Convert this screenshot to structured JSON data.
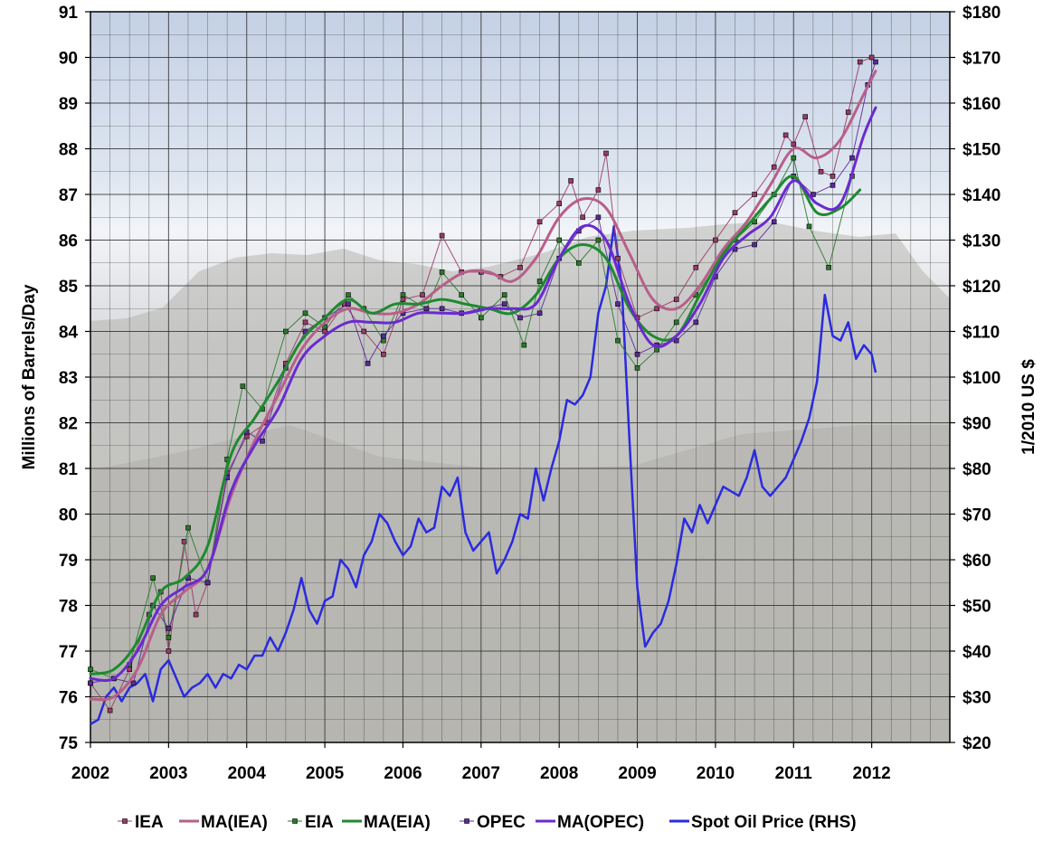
{
  "chart_data": {
    "type": "line",
    "title": "",
    "xlabel": "",
    "ylabel": "Millions of Barrels/Day",
    "y2label": "1/2010 US $",
    "xlim": [
      2002,
      2013
    ],
    "ylim": [
      75,
      91
    ],
    "y2lim": [
      20,
      180
    ],
    "x_ticks": [
      "2002",
      "2003",
      "2004",
      "2005",
      "2006",
      "2007",
      "2008",
      "2009",
      "2010",
      "2011",
      "2012"
    ],
    "y_ticks": [
      "75",
      "76",
      "77",
      "78",
      "79",
      "80",
      "81",
      "82",
      "83",
      "84",
      "85",
      "86",
      "87",
      "88",
      "89",
      "90",
      "91"
    ],
    "y2_ticks": [
      "$20",
      "$30",
      "$40",
      "$50",
      "$60",
      "$70",
      "$80",
      "$90",
      "$100",
      "$110",
      "$120",
      "$130",
      "$140",
      "$150",
      "$160",
      "$170",
      "$180"
    ],
    "legend": {
      "position": "bottom",
      "entries": [
        "IEA",
        "MA(IEA)",
        "EIA",
        "MA(EIA)",
        "OPEC",
        "MA(OPEC)",
        "Spot Oil Price (RHS)"
      ]
    },
    "colors": {
      "iea": "#9a3a6a",
      "ma_iea": "#b85f8a",
      "eia": "#2a7a2a",
      "ma_eia": "#1e8a30",
      "opec": "#5a2a9a",
      "ma_opec": "#6a2ad0",
      "spot": "#2a2ae0",
      "grid": "#333333"
    },
    "series": [
      {
        "name": "IEA",
        "key": "iea",
        "axis": "left",
        "style": "markers",
        "x": [
          2002.0,
          2002.25,
          2002.5,
          2002.75,
          2002.9,
          2003.0,
          2003.2,
          2003.35,
          2003.5,
          2003.75,
          2004.0,
          2004.25,
          2004.5,
          2004.75,
          2005.0,
          2005.25,
          2005.5,
          2005.75,
          2006.0,
          2006.25,
          2006.5,
          2006.75,
          2007.0,
          2007.25,
          2007.5,
          2007.75,
          2008.0,
          2008.15,
          2008.3,
          2008.5,
          2008.6,
          2008.75,
          2009.0,
          2009.25,
          2009.5,
          2009.75,
          2010.0,
          2010.25,
          2010.5,
          2010.75,
          2010.9,
          2011.0,
          2011.15,
          2011.35,
          2011.5,
          2011.7,
          2011.85,
          2012.0
        ],
        "values": [
          76.3,
          75.7,
          76.6,
          77.8,
          78.3,
          77.0,
          79.4,
          77.8,
          78.5,
          80.9,
          81.7,
          82.0,
          83.3,
          84.2,
          84.0,
          84.6,
          84.0,
          83.5,
          84.7,
          84.8,
          86.1,
          85.3,
          85.3,
          85.2,
          85.4,
          86.4,
          86.8,
          87.3,
          86.5,
          87.1,
          87.9,
          85.6,
          84.3,
          84.5,
          84.7,
          85.4,
          86.0,
          86.6,
          87.0,
          87.6,
          88.3,
          88.1,
          88.7,
          87.5,
          87.4,
          88.8,
          89.9,
          90.0
        ]
      },
      {
        "name": "MA(IEA)",
        "key": "ma_iea",
        "axis": "left",
        "style": "line",
        "x": [
          2002.0,
          2002.3,
          2002.6,
          2002.9,
          2003.2,
          2003.5,
          2003.8,
          2004.1,
          2004.4,
          2004.7,
          2005.0,
          2005.3,
          2005.6,
          2005.9,
          2006.2,
          2006.5,
          2006.8,
          2007.1,
          2007.4,
          2007.7,
          2008.0,
          2008.3,
          2008.6,
          2008.9,
          2009.2,
          2009.5,
          2009.8,
          2010.1,
          2010.4,
          2010.7,
          2011.0,
          2011.3,
          2011.6,
          2011.9,
          2012.05
        ],
        "values": [
          75.95,
          76.0,
          76.6,
          77.8,
          78.3,
          78.8,
          80.4,
          81.6,
          82.6,
          83.6,
          84.2,
          84.5,
          84.4,
          84.4,
          84.6,
          85.0,
          85.3,
          85.3,
          85.1,
          85.6,
          86.5,
          86.9,
          86.7,
          85.7,
          84.7,
          84.5,
          85.0,
          85.8,
          86.4,
          87.2,
          88.0,
          87.8,
          88.2,
          89.2,
          89.7
        ]
      },
      {
        "name": "EIA",
        "key": "eia",
        "axis": "left",
        "style": "markers",
        "x": [
          2002.0,
          2002.3,
          2002.5,
          2002.8,
          2003.0,
          2003.25,
          2003.5,
          2003.75,
          2003.95,
          2004.2,
          2004.5,
          2004.75,
          2005.0,
          2005.3,
          2005.5,
          2005.75,
          2006.0,
          2006.3,
          2006.5,
          2006.75,
          2007.0,
          2007.3,
          2007.55,
          2007.75,
          2008.0,
          2008.25,
          2008.5,
          2008.75,
          2009.0,
          2009.25,
          2009.5,
          2009.75,
          2010.0,
          2010.25,
          2010.5,
          2010.75,
          2011.0,
          2011.2,
          2011.45,
          2011.75
        ],
        "values": [
          76.6,
          76.4,
          76.7,
          78.6,
          77.3,
          79.7,
          78.5,
          81.2,
          82.8,
          82.3,
          84.0,
          84.4,
          84.1,
          84.8,
          84.5,
          83.8,
          84.8,
          84.5,
          85.3,
          84.8,
          84.3,
          84.8,
          83.7,
          85.1,
          86.0,
          85.5,
          86.0,
          83.8,
          83.2,
          83.6,
          84.2,
          84.8,
          85.4,
          86.0,
          86.4,
          87.0,
          87.8,
          86.3,
          85.4,
          87.4
        ]
      },
      {
        "name": "MA(EIA)",
        "key": "ma_eia",
        "axis": "left",
        "style": "line",
        "x": [
          2002.0,
          2002.3,
          2002.6,
          2002.9,
          2003.2,
          2003.5,
          2003.8,
          2004.1,
          2004.4,
          2004.7,
          2005.0,
          2005.3,
          2005.6,
          2005.9,
          2006.2,
          2006.5,
          2006.8,
          2007.1,
          2007.4,
          2007.7,
          2008.0,
          2008.3,
          2008.6,
          2008.9,
          2009.2,
          2009.5,
          2009.8,
          2010.1,
          2010.4,
          2010.7,
          2011.0,
          2011.3,
          2011.6,
          2011.85
        ],
        "values": [
          76.5,
          76.6,
          77.2,
          78.3,
          78.6,
          79.3,
          81.3,
          82.1,
          82.9,
          83.8,
          84.3,
          84.7,
          84.4,
          84.6,
          84.6,
          84.7,
          84.6,
          84.5,
          84.4,
          84.8,
          85.6,
          85.9,
          85.6,
          84.5,
          83.9,
          83.9,
          84.8,
          85.7,
          86.3,
          86.9,
          87.4,
          86.6,
          86.7,
          87.1
        ]
      },
      {
        "name": "OPEC",
        "key": "opec",
        "axis": "left",
        "style": "markers",
        "x": [
          2002.0,
          2002.3,
          2002.55,
          2002.8,
          2003.0,
          2003.25,
          2003.5,
          2003.75,
          2004.0,
          2004.2,
          2004.5,
          2004.75,
          2005.0,
          2005.3,
          2005.55,
          2005.75,
          2006.0,
          2006.3,
          2006.5,
          2006.75,
          2007.0,
          2007.3,
          2007.5,
          2007.75,
          2008.0,
          2008.25,
          2008.5,
          2008.75,
          2009.0,
          2009.25,
          2009.5,
          2009.75,
          2010.0,
          2010.25,
          2010.5,
          2010.75,
          2011.0,
          2011.25,
          2011.5,
          2011.75,
          2011.95,
          2012.05
        ],
        "values": [
          76.3,
          76.4,
          76.3,
          78.0,
          77.5,
          78.6,
          78.5,
          80.8,
          81.8,
          81.6,
          83.2,
          84.0,
          84.3,
          84.6,
          83.3,
          83.9,
          84.4,
          84.5,
          84.5,
          84.4,
          84.5,
          84.6,
          84.3,
          84.4,
          85.6,
          86.2,
          86.5,
          84.6,
          83.5,
          83.7,
          83.8,
          84.2,
          85.2,
          85.8,
          85.9,
          86.4,
          87.4,
          87.0,
          87.2,
          87.8,
          89.4,
          89.9
        ]
      },
      {
        "name": "MA(OPEC)",
        "key": "ma_opec",
        "axis": "left",
        "style": "line",
        "x": [
          2002.0,
          2002.3,
          2002.6,
          2002.9,
          2003.2,
          2003.5,
          2003.8,
          2004.1,
          2004.4,
          2004.7,
          2005.0,
          2005.3,
          2005.6,
          2005.9,
          2006.2,
          2006.5,
          2006.8,
          2007.1,
          2007.4,
          2007.7,
          2008.0,
          2008.3,
          2008.6,
          2008.9,
          2009.2,
          2009.5,
          2009.8,
          2010.1,
          2010.4,
          2010.7,
          2011.0,
          2011.3,
          2011.6,
          2011.9,
          2012.05
        ],
        "values": [
          76.4,
          76.4,
          77.0,
          78.0,
          78.4,
          78.8,
          80.5,
          81.5,
          82.3,
          83.4,
          83.9,
          84.2,
          84.2,
          84.2,
          84.4,
          84.4,
          84.4,
          84.5,
          84.5,
          84.6,
          85.6,
          86.3,
          86.0,
          84.6,
          83.7,
          83.9,
          84.6,
          85.6,
          86.1,
          86.5,
          87.3,
          86.8,
          86.8,
          88.3,
          88.9
        ]
      },
      {
        "name": "Spot Oil Price (RHS)",
        "key": "spot",
        "axis": "right",
        "style": "line",
        "x": [
          2002.0,
          2002.1,
          2002.2,
          2002.3,
          2002.4,
          2002.5,
          2002.6,
          2002.7,
          2002.8,
          2002.9,
          2003.0,
          2003.1,
          2003.2,
          2003.3,
          2003.4,
          2003.5,
          2003.6,
          2003.7,
          2003.8,
          2003.9,
          2004.0,
          2004.1,
          2004.2,
          2004.3,
          2004.4,
          2004.5,
          2004.6,
          2004.7,
          2004.8,
          2004.9,
          2005.0,
          2005.1,
          2005.2,
          2005.3,
          2005.4,
          2005.5,
          2005.6,
          2005.7,
          2005.8,
          2005.9,
          2006.0,
          2006.1,
          2006.2,
          2006.3,
          2006.4,
          2006.5,
          2006.6,
          2006.7,
          2006.8,
          2006.9,
          2007.0,
          2007.1,
          2007.2,
          2007.3,
          2007.4,
          2007.5,
          2007.6,
          2007.7,
          2007.8,
          2007.9,
          2008.0,
          2008.1,
          2008.2,
          2008.3,
          2008.4,
          2008.5,
          2008.6,
          2008.7,
          2008.8,
          2008.9,
          2009.0,
          2009.1,
          2009.2,
          2009.3,
          2009.4,
          2009.5,
          2009.6,
          2009.7,
          2009.8,
          2009.9,
          2010.0,
          2010.1,
          2010.2,
          2010.3,
          2010.4,
          2010.5,
          2010.6,
          2010.7,
          2010.8,
          2010.9,
          2011.0,
          2011.1,
          2011.2,
          2011.3,
          2011.4,
          2011.5,
          2011.6,
          2011.7,
          2011.8,
          2011.9,
          2012.0,
          2012.05
        ],
        "values": [
          24,
          25,
          30,
          32,
          29,
          32,
          33,
          35,
          29,
          36,
          38,
          34,
          30,
          32,
          33,
          35,
          32,
          35,
          34,
          37,
          36,
          39,
          39,
          43,
          40,
          44,
          49,
          56,
          49,
          46,
          51,
          52,
          60,
          58,
          54,
          61,
          64,
          70,
          68,
          64,
          61,
          63,
          69,
          66,
          67,
          76,
          74,
          78,
          66,
          62,
          64,
          66,
          57,
          60,
          64,
          70,
          69,
          80,
          73,
          80,
          86,
          95,
          94,
          96,
          100,
          114,
          120,
          133,
          120,
          86,
          54,
          41,
          44,
          46,
          51,
          59,
          69,
          66,
          72,
          68,
          72,
          76,
          75,
          74,
          78,
          84,
          76,
          74,
          76,
          78,
          82,
          86,
          91,
          99,
          118,
          109,
          108,
          112,
          104,
          107,
          105,
          101
        ]
      }
    ]
  }
}
